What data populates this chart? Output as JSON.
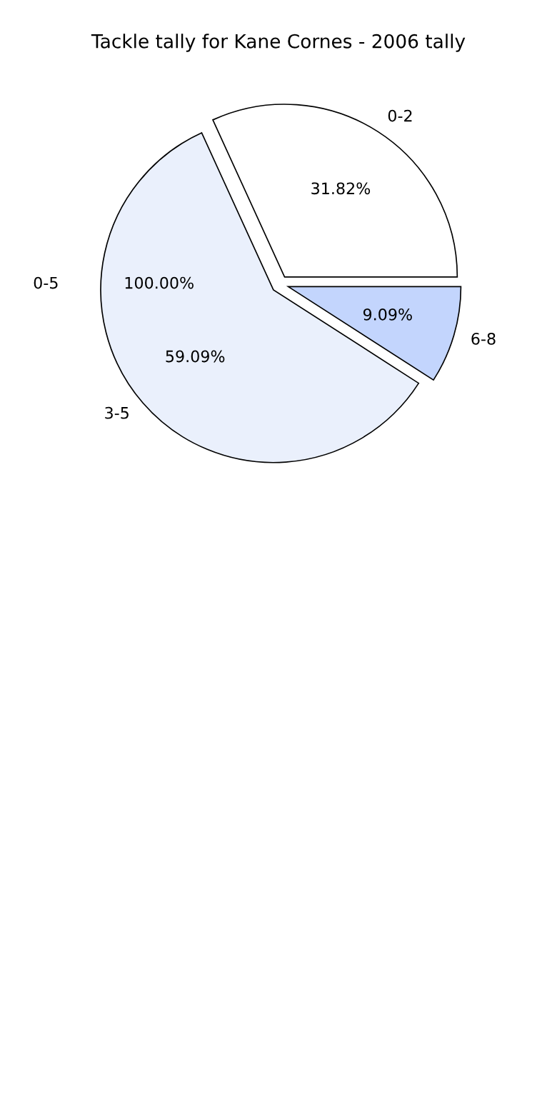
{
  "chart_data": {
    "type": "pie",
    "title": "Tackle tally for Kane Cornes - 2006 tally",
    "categories": [
      "0-2",
      "3-5",
      "6-8"
    ],
    "values": [
      31.82,
      59.09,
      9.09
    ],
    "colors": [
      "#ffffff",
      "#eaf0fc",
      "#c3d5fd"
    ],
    "value_labels": [
      "31.82%",
      "59.09%",
      "9.09%"
    ],
    "annotations": [
      "0-5",
      "100.00%"
    ]
  }
}
